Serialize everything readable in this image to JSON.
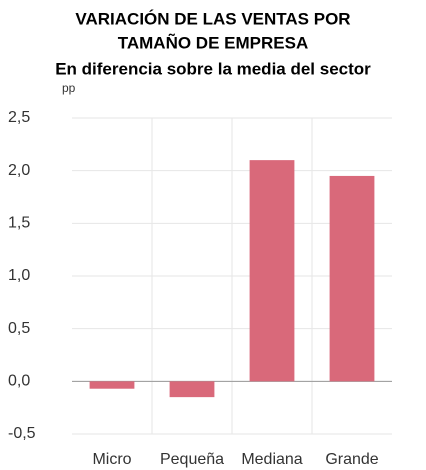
{
  "chart_data": {
    "type": "bar",
    "title": [
      "VARIACIÓN DE LAS VENTAS POR",
      "TAMAÑO DE EMPRESA"
    ],
    "subtitle": "En diferencia sobre la media del sector",
    "y_label": "pp",
    "categories": [
      "Micro",
      "Pequeña",
      "Mediana",
      "Grande"
    ],
    "values": [
      -0.07,
      -0.15,
      2.1,
      1.95
    ],
    "color": "#d9697a",
    "ylim": [
      -0.5,
      2.5
    ],
    "yticks": [
      {
        "value": -0.5,
        "label": "-0,5"
      },
      {
        "value": 0,
        "label": "0,0"
      },
      {
        "value": 0.5,
        "label": "0,5"
      },
      {
        "value": 1,
        "label": "1,0"
      },
      {
        "value": 1.5,
        "label": "1,5"
      },
      {
        "value": 2,
        "label": "2,0"
      },
      {
        "value": 2.5,
        "label": "2,5"
      }
    ],
    "grid": true
  }
}
